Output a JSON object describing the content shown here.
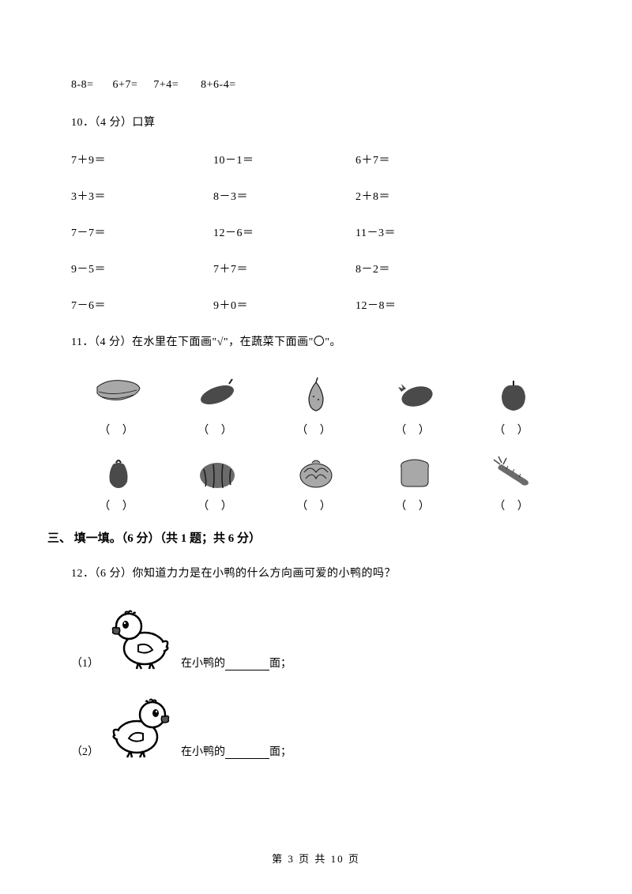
{
  "q9_tail": "8-8=      6+7=     7+4=       8+6-4=",
  "q10": {
    "header": "10．（4 分）口算",
    "rows": [
      [
        "7＋9＝",
        "10－1＝",
        "6＋7＝"
      ],
      [
        "3＋3＝",
        "8－3＝",
        "2＋8＝"
      ],
      [
        "7－7＝",
        "12－6＝",
        "11－3＝"
      ],
      [
        "9－5＝",
        "7＋7＝",
        "8－2＝"
      ],
      [
        "7－6＝",
        "9＋0＝",
        "12－8＝"
      ]
    ],
    "col_offsets": [
      0,
      180,
      360
    ]
  },
  "q11": {
    "header": "11．（4 分）在水里在下面画\"√\"，在蔬菜下面画\"〇\"。",
    "paren": "（    ）",
    "items_row1": [
      "banana",
      "cucumber",
      "pear",
      "eggplant",
      "apple"
    ],
    "items_row2": [
      "pepper",
      "watermelon",
      "cabbage",
      "loaf",
      "carrot"
    ]
  },
  "section3": "三、 填一填。（6 分）（共 1 题；共 6 分）",
  "q12": {
    "header": "12．（6 分）你知道力力是在小鸭的什么方向画可爱的小鸭的吗？",
    "sub1_num": "（1）",
    "sub2_num": "（2）",
    "text_before": "在小鸭的",
    "text_after": "面；"
  },
  "footer": "第 3 页 共 10 页",
  "colors": {
    "text": "#000000",
    "bg": "#ffffff",
    "gray_dark": "#4a4a4a",
    "gray_mid": "#6b6b6b",
    "gray_light": "#a8a8a8",
    "black": "#1a1a1a"
  }
}
